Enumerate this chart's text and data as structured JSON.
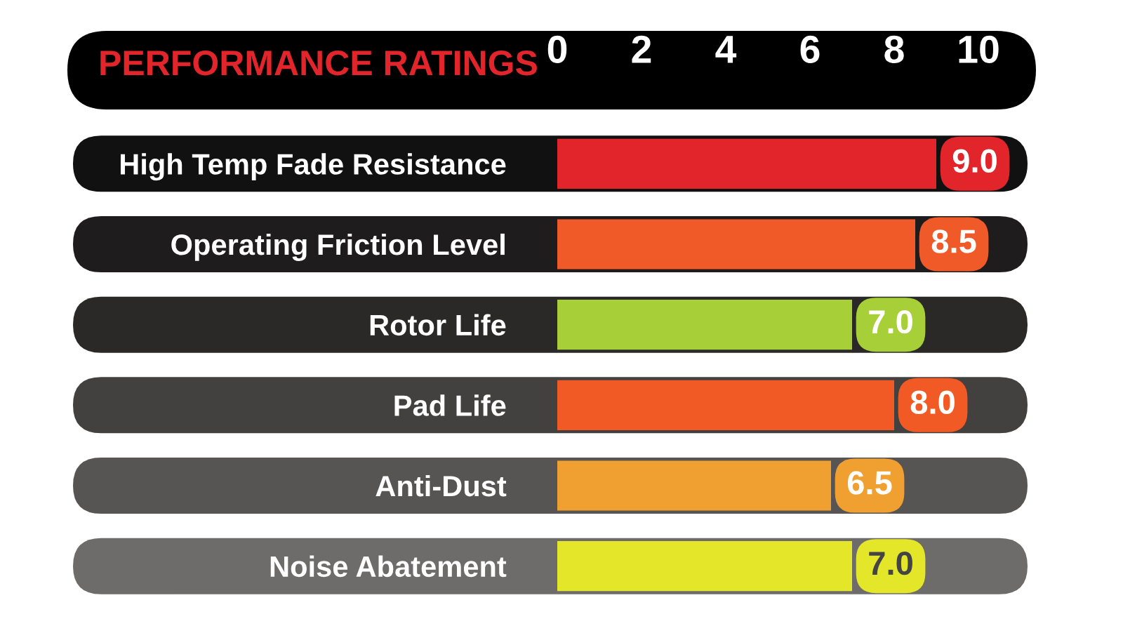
{
  "chart_data": {
    "type": "bar",
    "orientation": "horizontal",
    "title": "PERFORMANCE RATINGS",
    "categories": [
      "High Temp Fade Resistance",
      "Operating Friction Level",
      "Rotor Life",
      "Pad Life",
      "Anti-Dust",
      "Noise Abatement"
    ],
    "values": [
      9.0,
      8.5,
      7.0,
      8.0,
      6.5,
      7.0
    ],
    "colors": [
      "#e2242b",
      "#f05a28",
      "#a6cf38",
      "#f15a24",
      "#f0a030",
      "#e4e62a"
    ],
    "value_labels": [
      "9.0",
      "8.5",
      "7.0",
      "8.0",
      "6.5",
      "7.0"
    ],
    "xlim": [
      0,
      10
    ],
    "xticks": [
      0,
      2,
      4,
      6,
      8,
      10
    ],
    "grid": false,
    "legend": false
  }
}
